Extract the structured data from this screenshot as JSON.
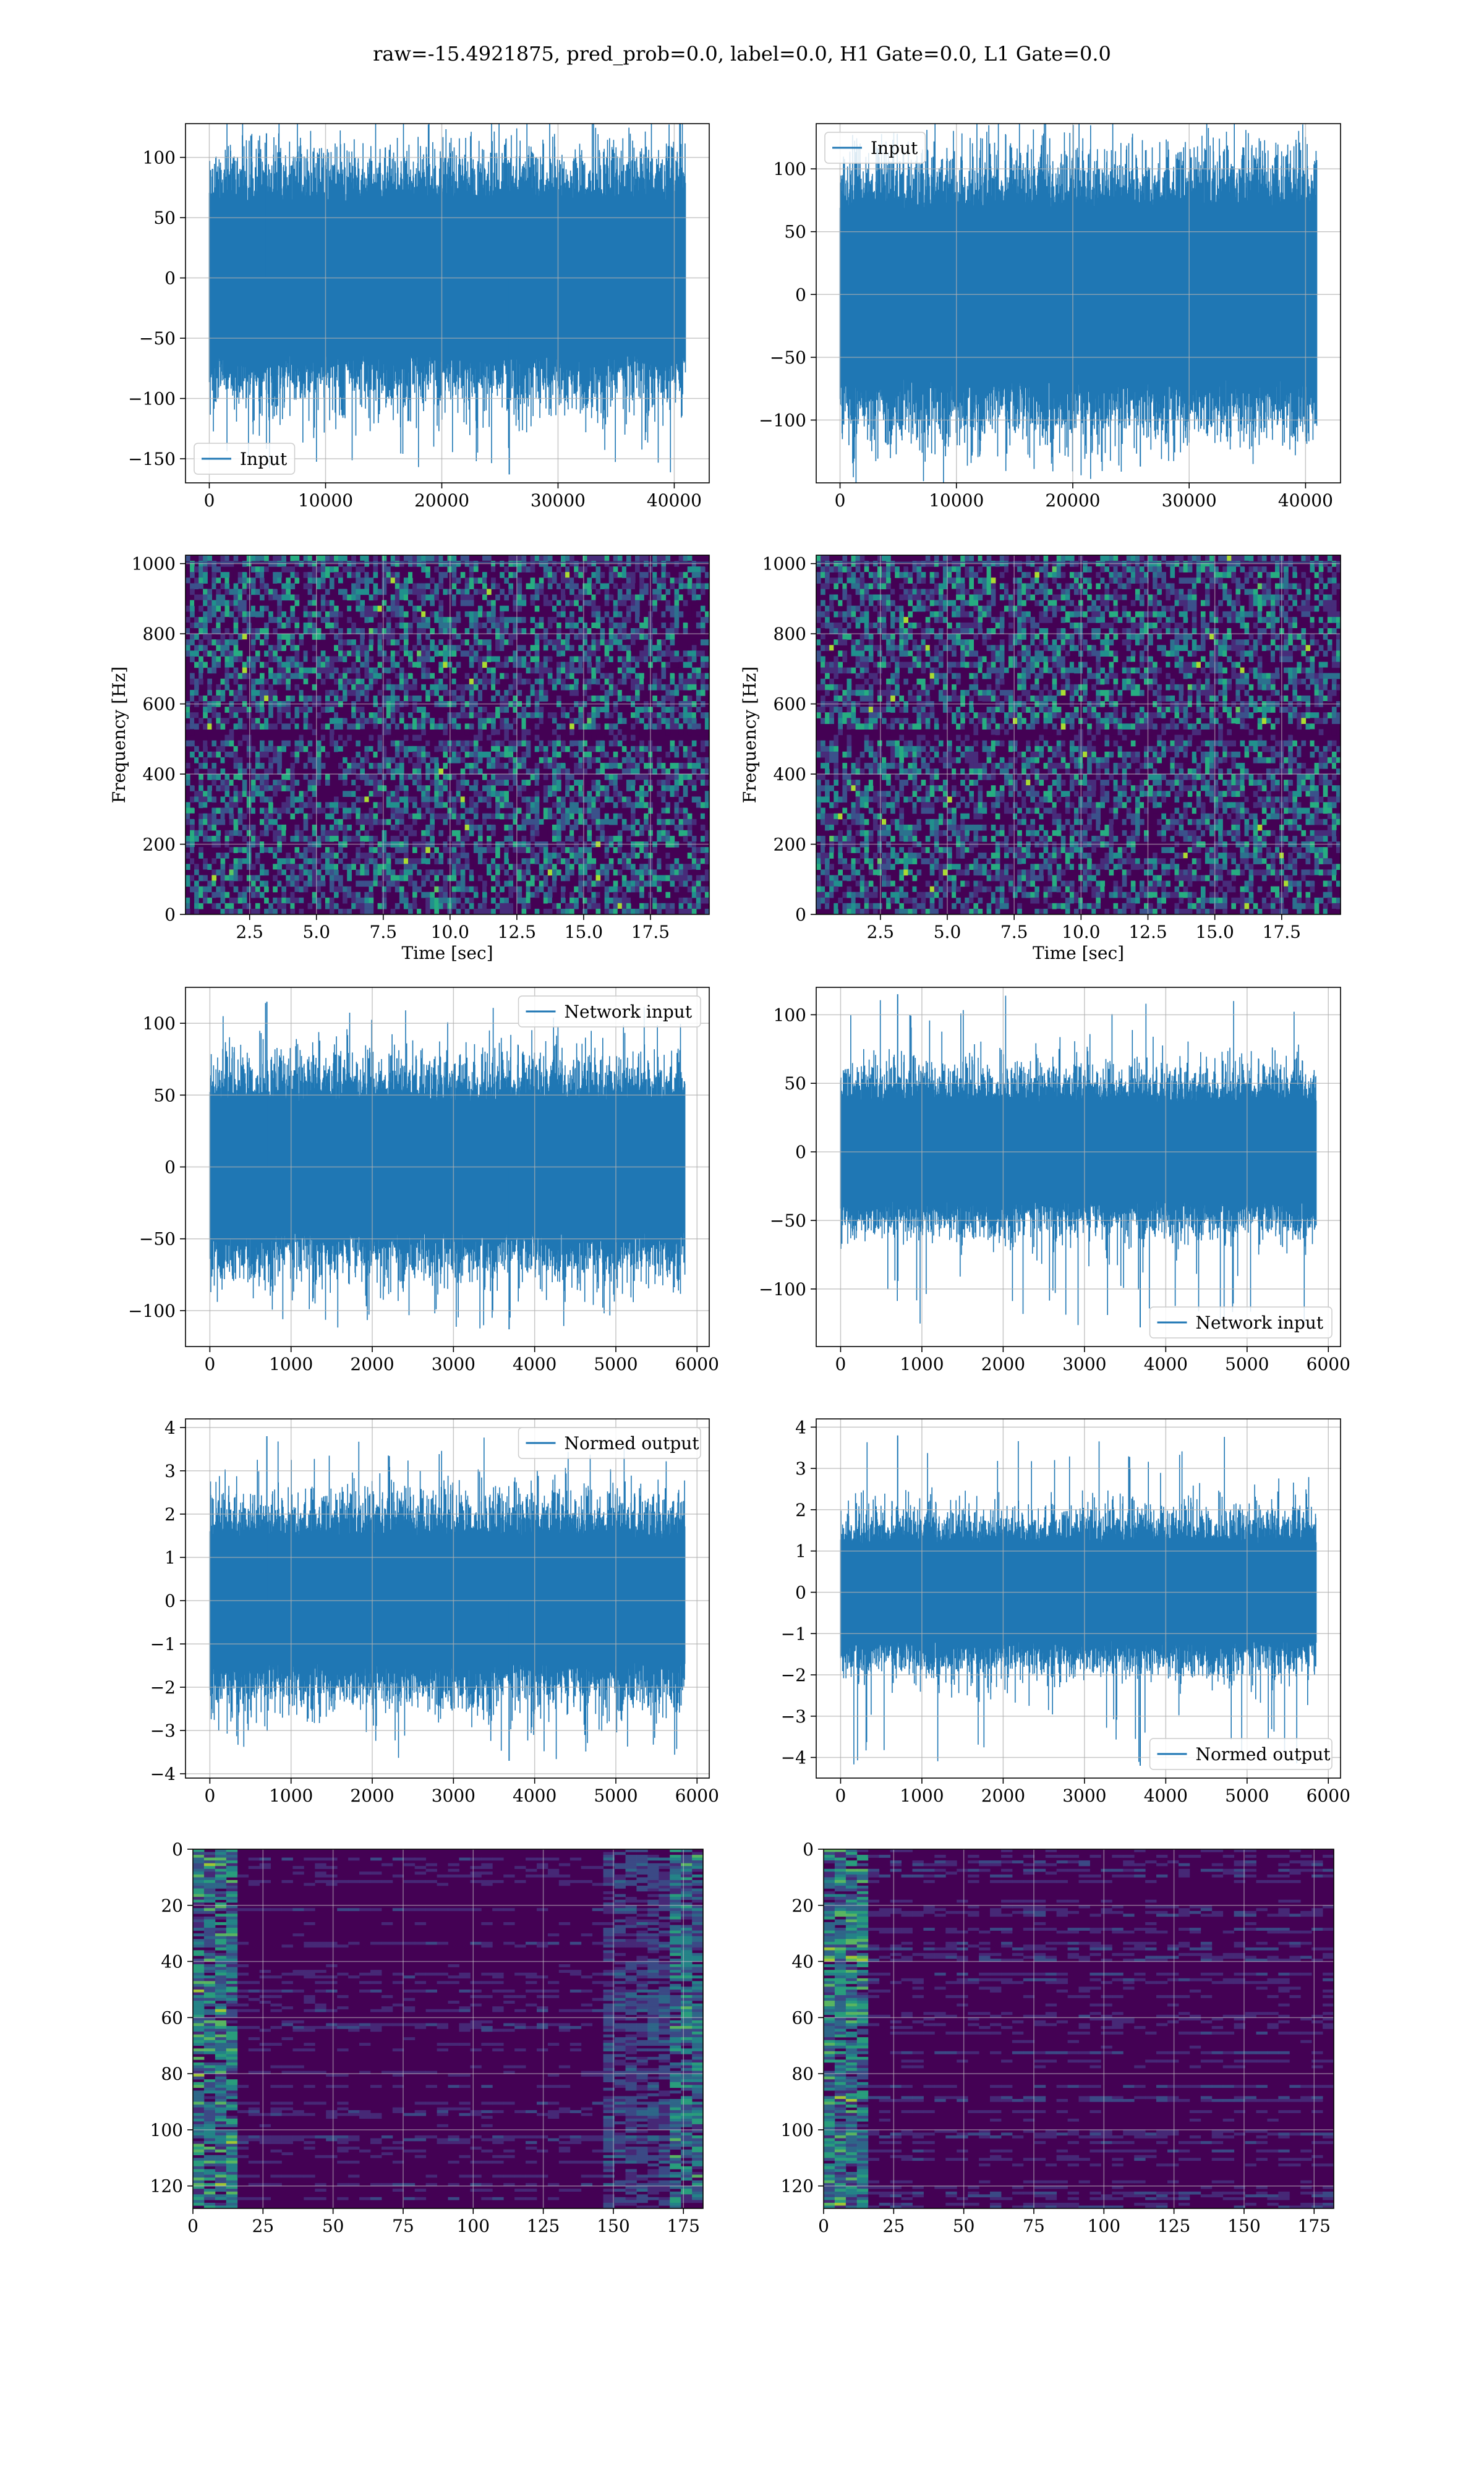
{
  "figure_title": "raw=-15.4921875, pred_prob=0.0, label=0.0, H1 Gate=0.0, L1 Gate=0.0",
  "colors": {
    "series": "#1f77b4",
    "grid": "#b0b0b0",
    "viridis_dark": "#440154",
    "axes": "#000000"
  },
  "chart_data": [
    {
      "id": "h1-input",
      "type": "line",
      "x_range": [
        0,
        40960
      ],
      "xlim": [
        -2048,
        43008
      ],
      "ylim": [
        -170,
        128
      ],
      "xticks": [
        0,
        10000,
        20000,
        30000,
        40000
      ],
      "yticks": [
        100,
        50,
        0,
        -50,
        -100,
        -150
      ],
      "xtick_labels": [
        "0",
        "10000",
        "20000",
        "30000",
        "40000"
      ],
      "ytick_labels": [
        "100",
        "50",
        "0",
        "−50",
        "−100",
        "−150"
      ],
      "series": [
        {
          "name": "Input",
          "color": "#1f77b4",
          "envelope": [
            -70,
            70
          ],
          "max": 120,
          "min": -163
        }
      ],
      "legend_loc": "lower-left",
      "grid": true
    },
    {
      "id": "l1-input",
      "type": "line",
      "x_range": [
        0,
        40960
      ],
      "xlim": [
        -2048,
        43008
      ],
      "ylim": [
        -150,
        136
      ],
      "xticks": [
        0,
        10000,
        20000,
        30000,
        40000
      ],
      "yticks": [
        100,
        50,
        0,
        -50,
        -100
      ],
      "xtick_labels": [
        "0",
        "10000",
        "20000",
        "30000",
        "40000"
      ],
      "ytick_labels": [
        "100",
        "50",
        "0",
        "−50",
        "−100"
      ],
      "series": [
        {
          "name": "Input",
          "color": "#1f77b4",
          "envelope": [
            -75,
            75
          ],
          "max": 128,
          "min": -137
        }
      ],
      "legend_loc": "upper-left",
      "grid": true
    },
    {
      "id": "h1-spectrogram",
      "type": "heatmap",
      "xlim": [
        0.1,
        19.7
      ],
      "ylim": [
        0,
        1024
      ],
      "xticks": [
        2.5,
        5.0,
        7.5,
        10.0,
        12.5,
        15.0,
        17.5
      ],
      "yticks": [
        0,
        200,
        400,
        600,
        800,
        1000
      ],
      "xtick_labels": [
        "2.5",
        "5.0",
        "7.5",
        "10.0",
        "12.5",
        "15.0",
        "17.5"
      ],
      "ytick_labels": [
        "0",
        "200",
        "400",
        "600",
        "800",
        "1000"
      ],
      "xlabel": "Time [sec]",
      "ylabel": "Frequency [Hz]",
      "colormap": "viridis",
      "grid": true
    },
    {
      "id": "l1-spectrogram",
      "type": "heatmap",
      "xlim": [
        0.1,
        19.7
      ],
      "ylim": [
        0,
        1024
      ],
      "xticks": [
        2.5,
        5.0,
        7.5,
        10.0,
        12.5,
        15.0,
        17.5
      ],
      "yticks": [
        0,
        200,
        400,
        600,
        800,
        1000
      ],
      "xtick_labels": [
        "2.5",
        "5.0",
        "7.5",
        "10.0",
        "12.5",
        "15.0",
        "17.5"
      ],
      "ytick_labels": [
        "0",
        "200",
        "400",
        "600",
        "800",
        "1000"
      ],
      "xlabel": "Time [sec]",
      "ylabel": "Frequency [Hz]",
      "colormap": "viridis",
      "grid": true
    },
    {
      "id": "h1-network-input",
      "type": "line",
      "x_range": [
        0,
        5850
      ],
      "xlim": [
        -300,
        6150
      ],
      "ylim": [
        -125,
        125
      ],
      "xticks": [
        0,
        1000,
        2000,
        3000,
        4000,
        5000,
        6000
      ],
      "yticks": [
        100,
        50,
        0,
        -50,
        -100
      ],
      "xtick_labels": [
        "0",
        "1000",
        "2000",
        "3000",
        "4000",
        "5000",
        "6000"
      ],
      "ytick_labels": [
        "100",
        "50",
        "0",
        "−50",
        "−100"
      ],
      "series": [
        {
          "name": "Network input",
          "color": "#1f77b4",
          "envelope": [
            -50,
            50
          ],
          "max": 115,
          "min": -113
        }
      ],
      "legend_loc": "upper-right",
      "grid": true
    },
    {
      "id": "l1-network-input",
      "type": "line",
      "x_range": [
        0,
        5850
      ],
      "xlim": [
        -300,
        6150
      ],
      "ylim": [
        -142,
        120
      ],
      "xticks": [
        0,
        1000,
        2000,
        3000,
        4000,
        5000,
        6000
      ],
      "yticks": [
        100,
        50,
        0,
        -50,
        -100
      ],
      "xtick_labels": [
        "0",
        "1000",
        "2000",
        "3000",
        "4000",
        "5000",
        "6000"
      ],
      "ytick_labels": [
        "100",
        "50",
        "0",
        "−50",
        "−100"
      ],
      "series": [
        {
          "name": "Network input",
          "color": "#1f77b4",
          "envelope": [
            -40,
            40
          ],
          "max": 115,
          "min": -128
        }
      ],
      "legend_loc": "lower-right",
      "grid": true
    },
    {
      "id": "h1-normed-output",
      "type": "line",
      "x_range": [
        0,
        5850
      ],
      "xlim": [
        -300,
        6150
      ],
      "ylim": [
        -4.1,
        4.2
      ],
      "xticks": [
        0,
        1000,
        2000,
        3000,
        4000,
        5000,
        6000
      ],
      "yticks": [
        4,
        3,
        2,
        1,
        0,
        -1,
        -2,
        -3,
        -4
      ],
      "xtick_labels": [
        "0",
        "1000",
        "2000",
        "3000",
        "4000",
        "5000",
        "6000"
      ],
      "ytick_labels": [
        "4",
        "3",
        "2",
        "1",
        "0",
        "−1",
        "−2",
        "−3",
        "−4"
      ],
      "series": [
        {
          "name": "Normed output",
          "color": "#1f77b4",
          "envelope": [
            -1.6,
            1.6
          ],
          "max": 3.8,
          "min": -3.7
        }
      ],
      "legend_loc": "upper-right",
      "grid": true
    },
    {
      "id": "l1-normed-output",
      "type": "line",
      "x_range": [
        0,
        5850
      ],
      "xlim": [
        -300,
        6150
      ],
      "ylim": [
        -4.5,
        4.2
      ],
      "xticks": [
        0,
        1000,
        2000,
        3000,
        4000,
        5000,
        6000
      ],
      "yticks": [
        4,
        3,
        2,
        1,
        0,
        -1,
        -2,
        -3,
        -4
      ],
      "xtick_labels": [
        "0",
        "1000",
        "2000",
        "3000",
        "4000",
        "5000",
        "6000"
      ],
      "ytick_labels": [
        "4",
        "3",
        "2",
        "1",
        "0",
        "−1",
        "−2",
        "−3",
        "−4"
      ],
      "series": [
        {
          "name": "Normed output",
          "color": "#1f77b4",
          "envelope": [
            -1.3,
            1.3
          ],
          "max": 3.8,
          "min": -4.2
        }
      ],
      "legend_loc": "lower-right",
      "grid": true
    },
    {
      "id": "h1-embedding",
      "type": "heatmap",
      "xlim": [
        0,
        182
      ],
      "ylim": [
        0,
        128
      ],
      "xticks": [
        0,
        25,
        50,
        75,
        100,
        125,
        150,
        175
      ],
      "yticks": [
        0,
        20,
        40,
        60,
        80,
        100,
        120
      ],
      "xtick_labels": [
        "0",
        "25",
        "50",
        "75",
        "100",
        "125",
        "150",
        "175"
      ],
      "ytick_labels": [
        "0",
        "20",
        "40",
        "60",
        "80",
        "100",
        "120"
      ],
      "colormap": "viridis",
      "grid": true
    },
    {
      "id": "l1-embedding",
      "type": "heatmap",
      "xlim": [
        0,
        182
      ],
      "ylim": [
        0,
        128
      ],
      "xticks": [
        0,
        25,
        50,
        75,
        100,
        125,
        150,
        175
      ],
      "yticks": [
        0,
        20,
        40,
        60,
        80,
        100,
        120
      ],
      "xtick_labels": [
        "0",
        "25",
        "50",
        "75",
        "100",
        "125",
        "150",
        "175"
      ],
      "ytick_labels": [
        "0",
        "20",
        "40",
        "60",
        "80",
        "100",
        "120"
      ],
      "colormap": "viridis",
      "grid": true
    }
  ]
}
